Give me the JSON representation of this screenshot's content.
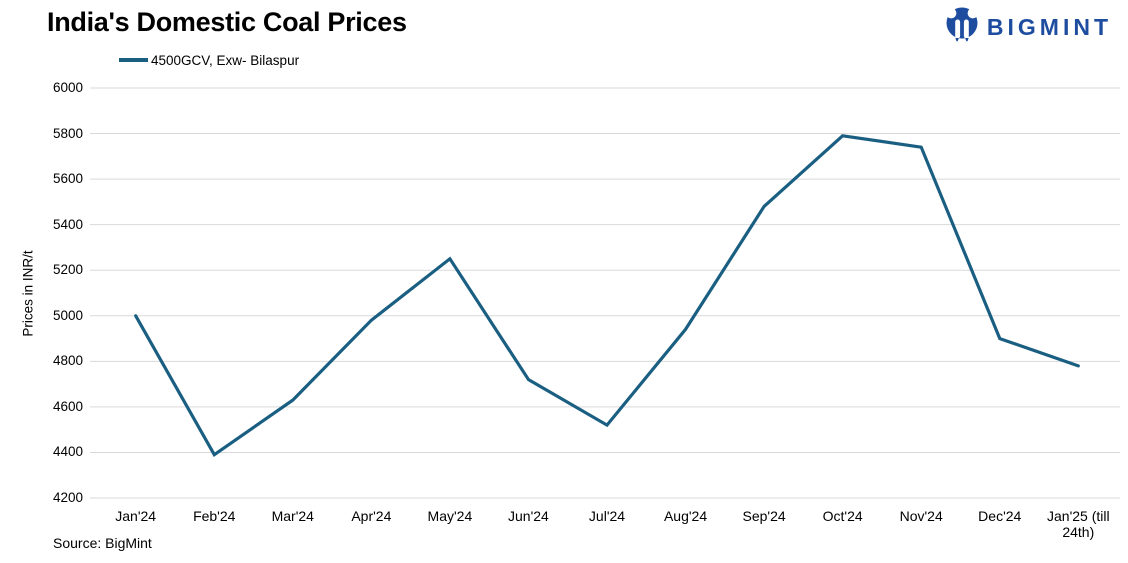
{
  "header": {
    "title": "India's Domestic Coal Prices",
    "logo": {
      "text": "BIGMINT",
      "color": "#1e4da0",
      "icon": "bigmint-person-icon"
    }
  },
  "legend": {
    "label": "4500GCV, Exw- Bilaspur",
    "line_color": "#1a5f82"
  },
  "source": "Source: BigMint",
  "chart_data": {
    "type": "line",
    "title": "India's Domestic Coal Prices",
    "categories": [
      "Jan'24",
      "Feb'24",
      "Mar'24",
      "Apr'24",
      "May'24",
      "Jun'24",
      "Jul'24",
      "Aug'24",
      "Sep'24",
      "Oct'24",
      "Nov'24",
      "Dec'24",
      "Jan'25 (till 24th)"
    ],
    "series": [
      {
        "name": "4500GCV, Exw- Bilaspur",
        "color": "#1a5f82",
        "values": [
          5000,
          4390,
          4630,
          4980,
          5250,
          4720,
          4520,
          4940,
          5480,
          5790,
          5740,
          4900,
          4780
        ]
      }
    ],
    "xlabel": "",
    "ylabel": "Prices in INR/t",
    "ylim": [
      4200,
      6000
    ],
    "ytick_step": 200,
    "yticks": [
      4200,
      4400,
      4600,
      4800,
      5000,
      5200,
      5400,
      5600,
      5800,
      6000
    ],
    "grid": "horizontal",
    "gridline_color": "#d9d9d9",
    "legend_position": "top-left"
  }
}
